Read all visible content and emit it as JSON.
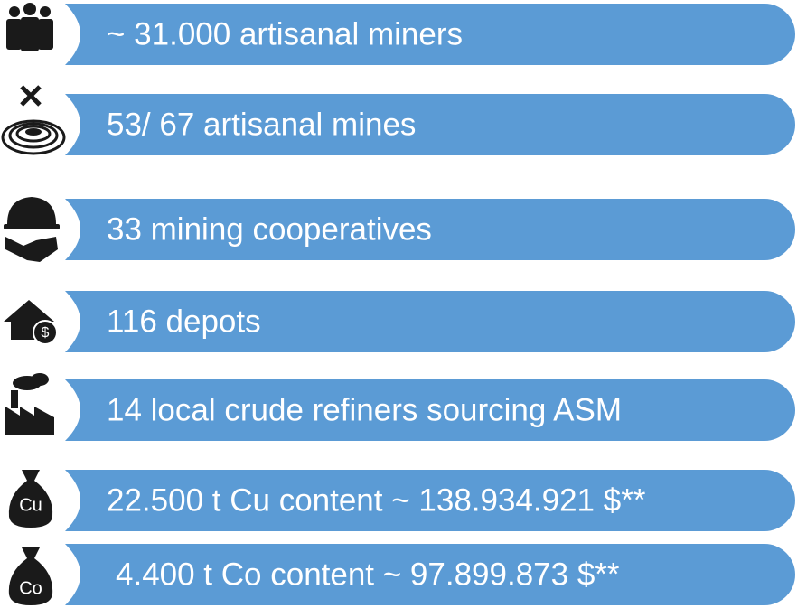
{
  "items": [
    {
      "text": "~ 31.000 artisanal miners"
    },
    {
      "text": "53/ 67 artisanal mines"
    },
    {
      "text": "33 mining cooperatives"
    },
    {
      "text": "116 depots"
    },
    {
      "text": "14 local crude refiners sourcing ASM"
    },
    {
      "text": "22.500 t Cu content ~ 138.934.921 $**",
      "icon_label": "Cu"
    },
    {
      "text": "4.400 t Co content ~ 97.899.873 $**",
      "icon_label": "Co"
    }
  ]
}
